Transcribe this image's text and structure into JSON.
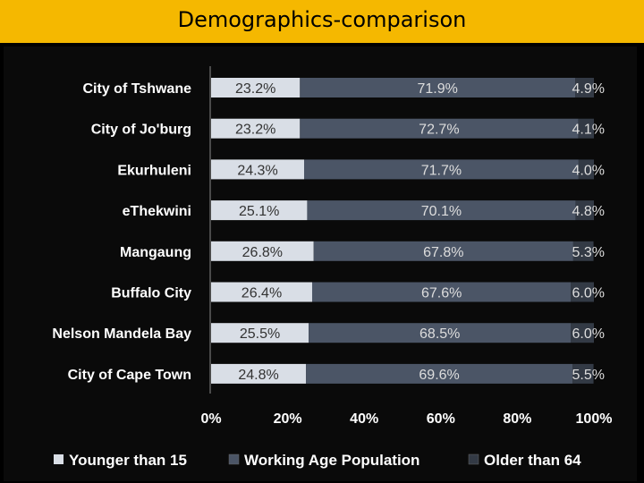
{
  "page": {
    "title": "Demographics-comparison"
  },
  "chart_data": {
    "type": "bar",
    "orientation": "horizontal",
    "stacked": true,
    "percent": true,
    "categories": [
      "City of Tshwane",
      "City of Jo'burg",
      "Ekurhuleni",
      "eThekwini",
      "Mangaung",
      "Buffalo City",
      "Nelson Mandela Bay",
      "City of Cape Town"
    ],
    "series": [
      {
        "name": "Younger than 15",
        "color": "#D9DEE6",
        "values": [
          23.2,
          23.2,
          24.3,
          25.1,
          26.8,
          26.4,
          25.5,
          24.8
        ],
        "labels": [
          "23.2%",
          "23.2%",
          "24.3%",
          "25.1%",
          "26.8%",
          "26.4%",
          "25.5%",
          "24.8%"
        ]
      },
      {
        "name": "Working Age Population",
        "color": "#4B5566",
        "values": [
          71.9,
          72.7,
          71.7,
          70.1,
          67.8,
          67.6,
          68.5,
          69.6
        ],
        "labels": [
          "71.9%",
          "72.7%",
          "71.7%",
          "70.1%",
          "67.8%",
          "67.6%",
          "68.5%",
          "69.6%"
        ]
      },
      {
        "name": "Older than 64",
        "color": "#333A45",
        "values": [
          4.9,
          4.1,
          4.0,
          4.8,
          5.3,
          6.0,
          6.0,
          5.5
        ],
        "labels": [
          "4.9%",
          "4.1%",
          "4.0%",
          "4.8%",
          "5.3%",
          "6.0%",
          "6.0%",
          "5.5%"
        ]
      }
    ],
    "xticks": [
      "0%",
      "20%",
      "40%",
      "60%",
      "80%",
      "100%"
    ],
    "xlim": [
      0,
      100
    ],
    "legend_position": "bottom",
    "grid": false,
    "text_color": "#FFFFFF"
  }
}
